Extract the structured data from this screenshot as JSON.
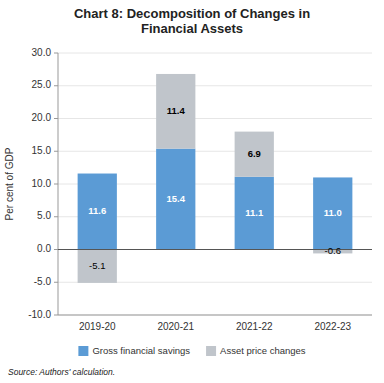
{
  "chart_data": {
    "type": "bar",
    "title": "Chart 8: Decomposition of Changes in\nFinancial Assets",
    "categories": [
      "2019-20",
      "2020-21",
      "2021-22",
      "2022-23"
    ],
    "series": [
      {
        "name": "Gross financial savings",
        "color": "#5b9bd5",
        "values": [
          11.6,
          15.4,
          11.1,
          11.0
        ],
        "value_labels": [
          "11.6",
          "15.4",
          "11.1",
          "11.0"
        ]
      },
      {
        "name": "Asset price changes",
        "color": "#c0c5cb",
        "values": [
          -5.1,
          11.4,
          6.9,
          -0.6
        ],
        "value_labels": [
          "-5.1",
          "11.4",
          "6.9",
          "-0.6"
        ]
      }
    ],
    "y_label": "Per cent of GDP",
    "ylim": [
      -10.0,
      30.0
    ],
    "yticks": [
      {
        "value": -10.0,
        "label": "-10.0"
      },
      {
        "value": -5.0,
        "label": "-5.0"
      },
      {
        "value": 0.0,
        "label": "0.0"
      },
      {
        "value": 5.0,
        "label": "5.0"
      },
      {
        "value": 10.0,
        "label": "10.0"
      },
      {
        "value": 15.0,
        "label": "15.0"
      },
      {
        "value": 20.0,
        "label": "20.0"
      },
      {
        "value": 25.0,
        "label": "25.0"
      },
      {
        "value": 30.0,
        "label": "30.0"
      }
    ],
    "stacked": true,
    "grid": true,
    "legend": "bottom",
    "data_labels": true,
    "annotations": [
      "Source: Authors' calculation."
    ]
  }
}
